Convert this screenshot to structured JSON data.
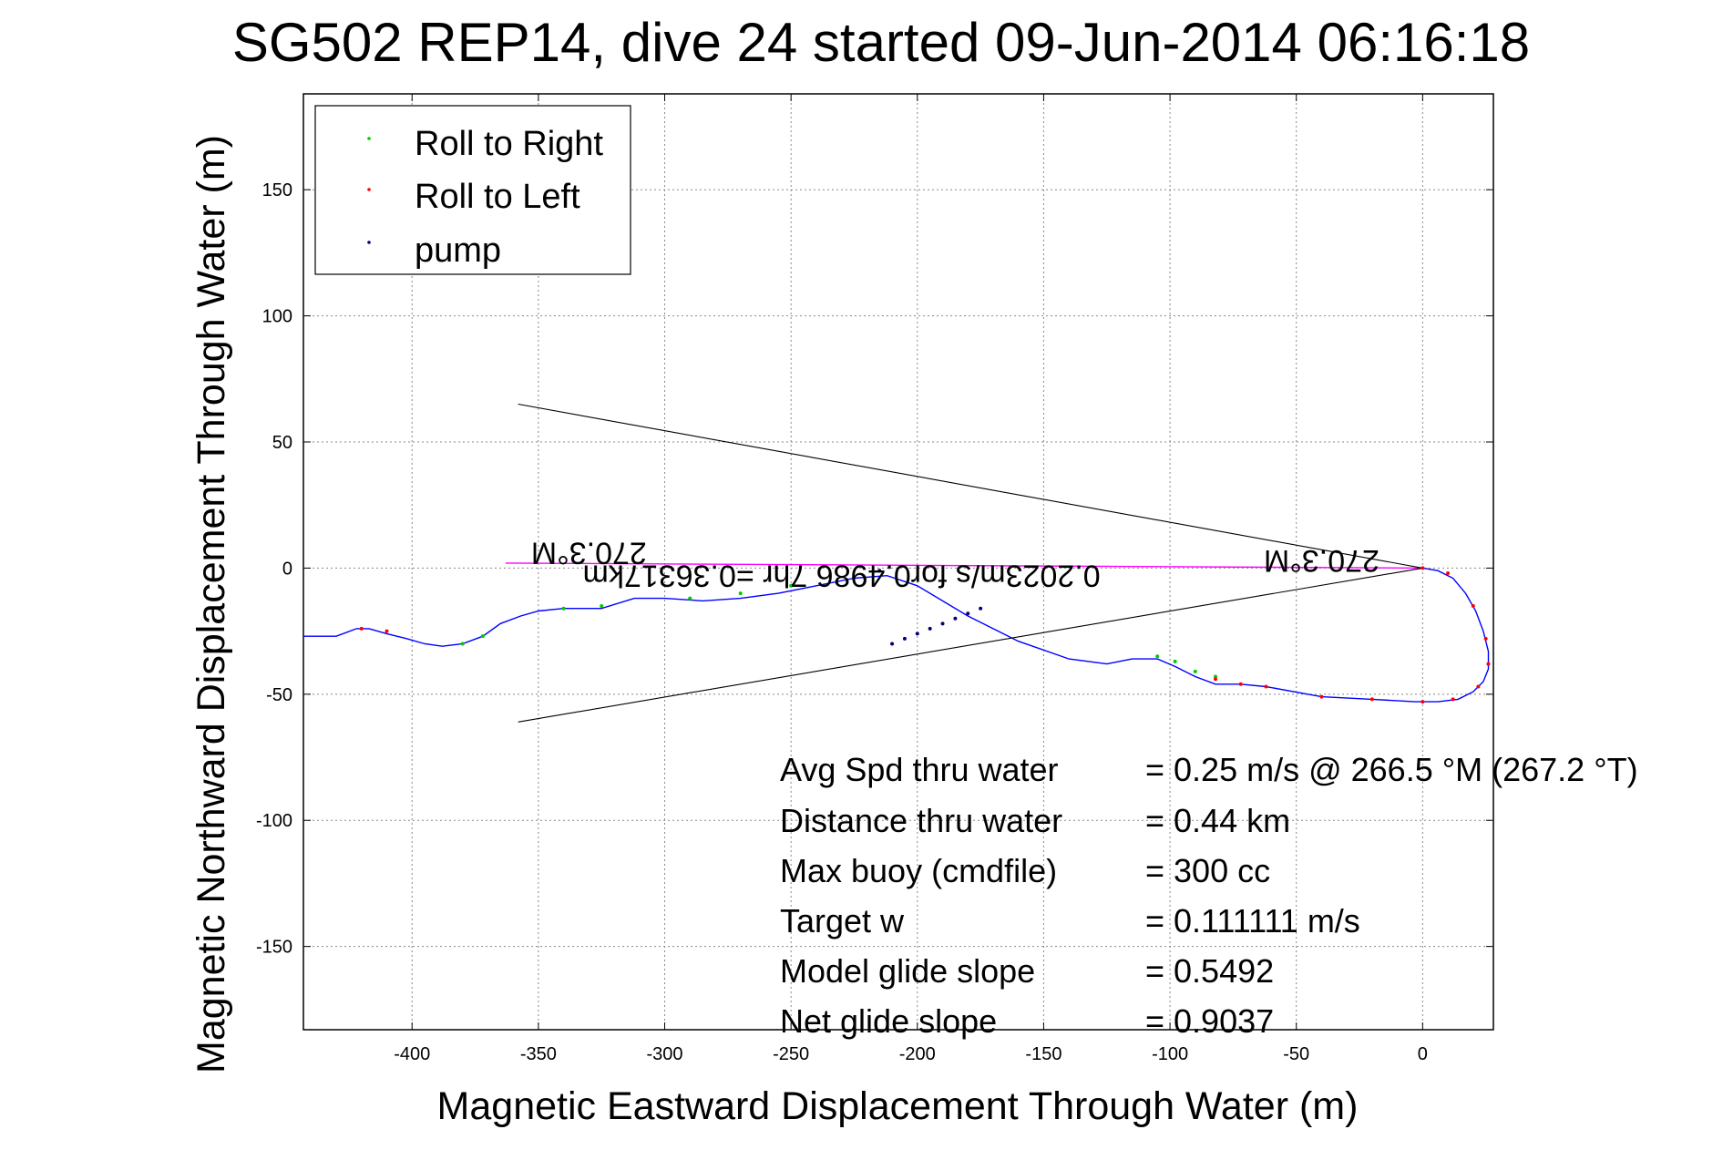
{
  "chart_data": {
    "type": "line",
    "title": "SG502 REP14, dive 24 started 09-Jun-2014 06:16:18",
    "xlabel": "Magnetic Eastward Displacement Through Water (m)",
    "ylabel": "Magnetic Northward Displacement Through Water (m)",
    "xlim": [
      -443,
      28
    ],
    "ylim": [
      -183,
      188
    ],
    "xticks": [
      -400,
      -350,
      -300,
      -250,
      -200,
      -150,
      -100,
      -50,
      0
    ],
    "yticks": [
      150,
      100,
      50,
      0,
      -50,
      -100,
      -150
    ],
    "grid": true,
    "legend_placement": "top-left",
    "legend": [
      {
        "label": "Roll to Right",
        "color": "#00cc00"
      },
      {
        "label": "Roll to Left",
        "color": "#ff0000"
      },
      {
        "label": "pump",
        "color": "#000080"
      }
    ],
    "colors": {
      "track": "#0000ff",
      "heading_line": "#ff00ff",
      "wedge": "#000000",
      "grid": "#888888"
    },
    "series": [
      {
        "kind": "track",
        "color": "#0000ff",
        "x": [
          0,
          6,
          12,
          17,
          21,
          24,
          26,
          26,
          24,
          20,
          14,
          6,
          -3,
          -20,
          -40,
          -62,
          -72,
          -82,
          -90,
          -98,
          -105,
          -115,
          -125,
          -140,
          -160,
          -180,
          -200,
          -212,
          -225,
          -240,
          -255,
          -270,
          -285,
          -300,
          -312,
          -325,
          -340,
          -350,
          -357,
          -365,
          -372,
          -380,
          -388,
          -395,
          -402,
          -410,
          -417,
          -422,
          -430,
          -443
        ],
        "y": [
          0,
          -1,
          -4,
          -10,
          -17,
          -25,
          -33,
          -40,
          -45,
          -49,
          -52,
          -53,
          -53,
          -52,
          -51,
          -47,
          -46,
          -46,
          -43,
          -39,
          -36,
          -36,
          -38,
          -36,
          -29,
          -19,
          -7,
          -3,
          -4,
          -7,
          -10,
          -12,
          -13,
          -12,
          -12,
          -16,
          -16,
          -17,
          -19,
          -22,
          -27,
          -30,
          -31,
          -30,
          -28,
          -26,
          -24,
          -24,
          -27,
          -27
        ]
      },
      {
        "kind": "markers",
        "name": "Roll to Right",
        "color": "#00cc00",
        "x": [
          -105,
          -98,
          -90,
          -82,
          -250,
          -270,
          -290,
          -325,
          -340,
          -372,
          -380
        ],
        "y": [
          -35,
          -37,
          -41,
          -43,
          -7,
          -10,
          -12,
          -15,
          -16,
          -27,
          -30
        ]
      },
      {
        "kind": "markers",
        "name": "Roll to Left",
        "color": "#ff0000",
        "x": [
          0,
          10,
          20,
          25,
          26,
          22,
          12,
          0,
          -20,
          -40,
          -62,
          -72,
          -82,
          -410,
          -420
        ],
        "y": [
          0,
          -2,
          -15,
          -28,
          -38,
          -47,
          -52,
          -53,
          -52,
          -51,
          -47,
          -46,
          -44,
          -25,
          -24
        ]
      },
      {
        "kind": "markers",
        "name": "pump",
        "color": "#000080",
        "x": [
          -175,
          -180,
          -185,
          -190,
          -195,
          -200,
          -205,
          -210,
          -215
        ],
        "y": [
          -16,
          -18,
          -20,
          -22,
          -24,
          -26,
          -28,
          -30,
          -1
        ]
      },
      {
        "kind": "heading-line",
        "color": "#ff00ff",
        "x": [
          -363,
          0
        ],
        "y": [
          2,
          0
        ]
      },
      {
        "kind": "wedge-upper",
        "color": "#000000",
        "x": [
          -358,
          0
        ],
        "y": [
          65,
          0
        ]
      },
      {
        "kind": "wedge-lower",
        "color": "#000000",
        "x": [
          -358,
          0
        ],
        "y": [
          -61,
          0
        ]
      }
    ],
    "annotations": [
      {
        "text": "270.3°M",
        "x": -330,
        "y": 10,
        "rotated": true
      },
      {
        "text": "270.3°M",
        "x": -40,
        "y": 7,
        "rotated": true
      },
      {
        "text": "0.2023m/s for0.4986 7hr =0.36317km",
        "x": -230,
        "y": 1,
        "rotated": true
      }
    ],
    "stats": [
      {
        "label": "Avg Spd thru water",
        "value": "=  0.25 m/s @ 266.5 °M (267.2 °T)"
      },
      {
        "label": "Distance thru water",
        "value": "=  0.44 km"
      },
      {
        "label": "Max buoy (cmdfile)",
        "value": "= 300 cc"
      },
      {
        "label": "Target w",
        "value": "= 0.111111 m/s"
      },
      {
        "label": "Model glide slope",
        "value": "= 0.5492"
      },
      {
        "label": "Net glide slope",
        "value": "= 0.9037"
      }
    ]
  }
}
